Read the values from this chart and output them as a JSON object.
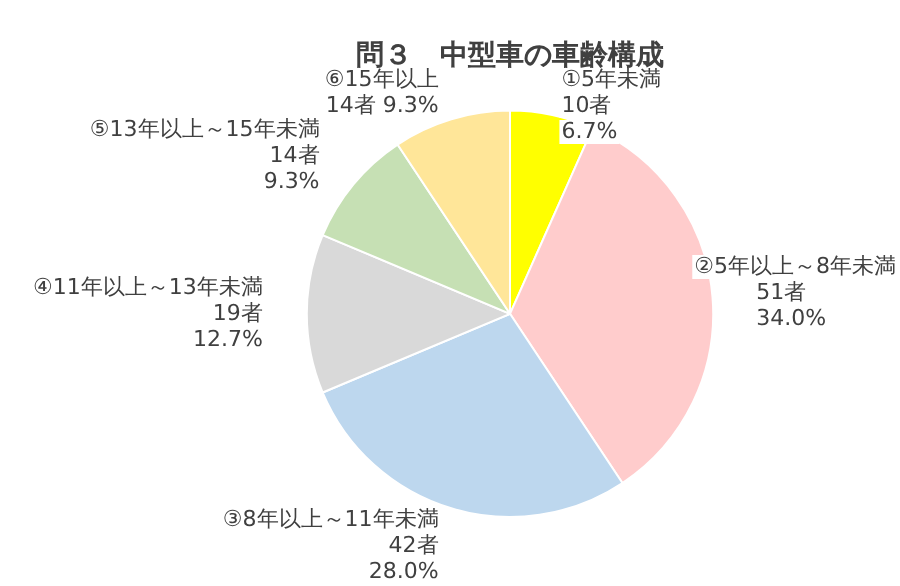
{
  "chart_data": {
    "type": "pie",
    "title": "問３　中型車の車齢構成",
    "categories": [
      "①5年未満",
      "②5年以上～8年未満",
      "③8年以上～11年未満",
      "④11年以上～13年未満",
      "⑤13年以上～15年未満",
      "⑥15年以上"
    ],
    "values": [
      10,
      51,
      42,
      19,
      14,
      14
    ],
    "value_labels": [
      "10者\n6.7%",
      "51者\n34.0%",
      "42者\n28.0%",
      "19者\n12.7%",
      "14者\n9.3%",
      "14者 9.3%"
    ],
    "colors": [
      "#ffff00",
      "#ffcccc",
      "#bdd7ee",
      "#d9d9d9",
      "#c6e0b4",
      "#ffe699"
    ],
    "legend": false
  }
}
